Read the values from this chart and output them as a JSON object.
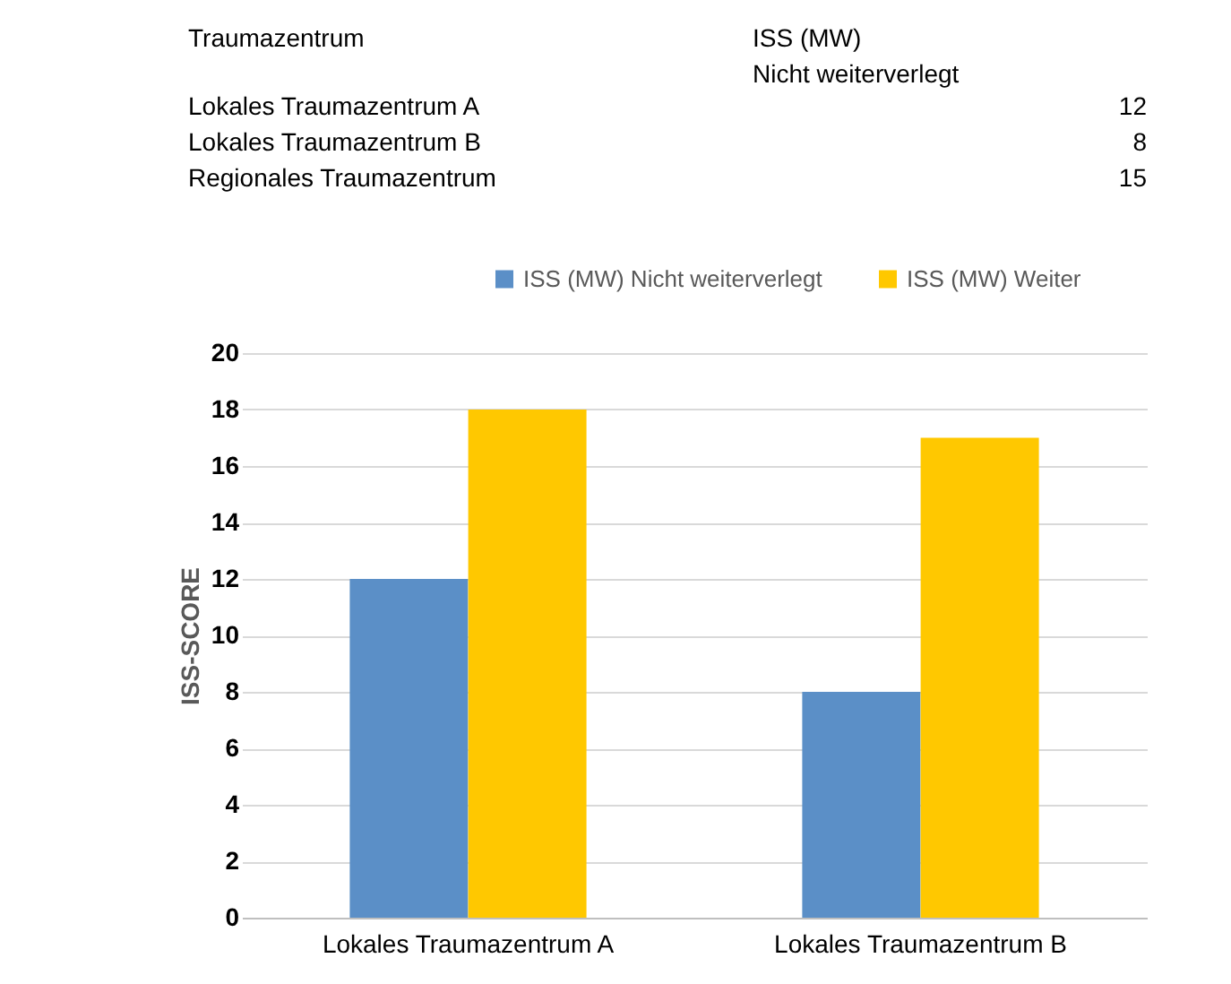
{
  "chart_data": {
    "type": "bar",
    "categories": [
      "Lokales Traumazentrum A",
      "Lokales Traumazentrum B"
    ],
    "series": [
      {
        "name": "ISS (MW) Nicht weiterverlegt",
        "color": "#5b8fc7",
        "values": [
          12,
          8
        ]
      },
      {
        "name": "ISS (MW) Weiter",
        "color": "#ffc800",
        "values": [
          18,
          17
        ]
      }
    ],
    "ylabel": "ISS-SCORE",
    "ylim": [
      0,
      20
    ],
    "yticks": [
      0,
      2,
      4,
      6,
      8,
      10,
      12,
      14,
      16,
      18,
      20
    ],
    "grid": "y",
    "legend": "top",
    "annotations": [
      "Traumazentrum",
      "ISS (MW)\nNicht weiterverlegt",
      "Lokales Traumazentrum A",
      "12",
      "Lokales Traumazentrum B",
      "8",
      "Regionales Traumazentrum",
      "15"
    ]
  }
}
